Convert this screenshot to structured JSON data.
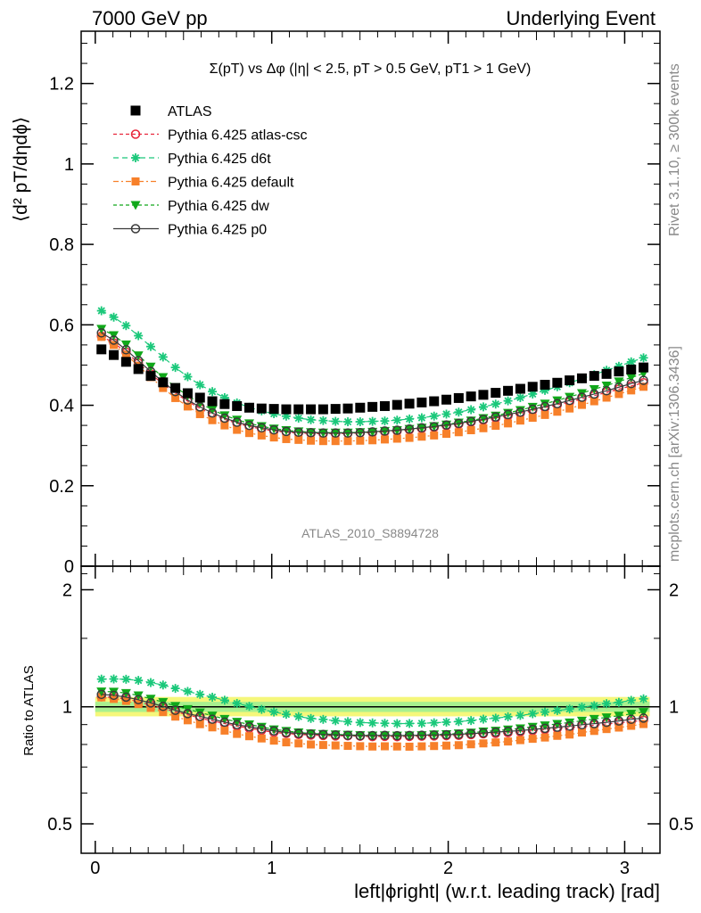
{
  "header": {
    "left": "7000 GeV pp",
    "right": "Underlying Event"
  },
  "side_labels": {
    "rivet": "Rivet 3.1.10, ≥ 300k events",
    "mcplots": "mcplots.cern.ch [arXiv:1306.3436]"
  },
  "chart_data": {
    "type": "scatter",
    "title": "Σ(pT) vs Δφ (|η| < 2.5, pT > 0.5 GeV, pT1 > 1 GeV)",
    "analysis_label": "ATLAS_2010_S8894728",
    "xlabel": "left|ϕright| (w.r.t. leading track) [rad]",
    "ylabel": "⟨d² pT/dηdϕ⟩",
    "ratio_ylabel": "Ratio to ATLAS",
    "xlim": [
      -0.08,
      3.2
    ],
    "ylim": [
      0,
      1.33
    ],
    "ratio_ylim": [
      0.42,
      2.3
    ],
    "ratio_scale": "log",
    "x_ticks": [
      "0",
      "1",
      "2",
      "3"
    ],
    "y_ticks": [
      "0",
      "0.2",
      "0.4",
      "0.6",
      "0.8",
      "1",
      "1.2"
    ],
    "ratio_ticks": [
      "0.5",
      "1",
      "2"
    ],
    "legend_placement": "top-left",
    "x": [
      0.0349,
      0.1047,
      0.1745,
      0.2443,
      0.3142,
      0.384,
      0.4538,
      0.5236,
      0.5934,
      0.6632,
      0.733,
      0.8029,
      0.8727,
      0.9425,
      1.0123,
      1.0821,
      1.1519,
      1.2217,
      1.2915,
      1.3614,
      1.4312,
      1.501,
      1.5708,
      1.6406,
      1.7104,
      1.7802,
      1.85,
      1.9199,
      1.9897,
      2.0595,
      2.1293,
      2.1991,
      2.2689,
      2.3387,
      2.4086,
      2.4784,
      2.5482,
      2.618,
      2.6878,
      2.7576,
      2.8274,
      2.8972,
      2.9671,
      3.0369,
      3.1067
    ],
    "series": [
      {
        "name": "ATLAS",
        "style": "square",
        "color": "#000000",
        "values": [
          0.539,
          0.525,
          0.508,
          0.49,
          0.473,
          0.457,
          0.443,
          0.43,
          0.419,
          0.41,
          0.403,
          0.398,
          0.394,
          0.392,
          0.391,
          0.39,
          0.39,
          0.39,
          0.39,
          0.391,
          0.392,
          0.394,
          0.396,
          0.398,
          0.401,
          0.404,
          0.407,
          0.41,
          0.414,
          0.418,
          0.422,
          0.426,
          0.431,
          0.436,
          0.441,
          0.446,
          0.451,
          0.456,
          0.462,
          0.467,
          0.473,
          0.478,
          0.484,
          0.489,
          0.494
        ]
      },
      {
        "name": "Pythia 6.425 atlas-csc",
        "style": "open-circle",
        "color": "#e8263b",
        "values": [
          0.572,
          0.555,
          0.532,
          0.505,
          0.478,
          0.453,
          0.43,
          0.41,
          0.392,
          0.377,
          0.365,
          0.355,
          0.347,
          0.341,
          0.336,
          0.333,
          0.331,
          0.33,
          0.329,
          0.329,
          0.33,
          0.331,
          0.332,
          0.334,
          0.336,
          0.339,
          0.342,
          0.345,
          0.349,
          0.353,
          0.358,
          0.363,
          0.368,
          0.374,
          0.38,
          0.387,
          0.394,
          0.401,
          0.408,
          0.416,
          0.424,
          0.432,
          0.44,
          0.448,
          0.456
        ]
      },
      {
        "name": "Pythia 6.425 d6t",
        "style": "star",
        "color": "#1ac87a",
        "values": [
          0.635,
          0.619,
          0.598,
          0.573,
          0.546,
          0.52,
          0.494,
          0.471,
          0.451,
          0.434,
          0.419,
          0.406,
          0.395,
          0.386,
          0.379,
          0.373,
          0.368,
          0.364,
          0.362,
          0.36,
          0.359,
          0.359,
          0.36,
          0.361,
          0.363,
          0.366,
          0.369,
          0.373,
          0.378,
          0.383,
          0.389,
          0.396,
          0.403,
          0.411,
          0.419,
          0.428,
          0.437,
          0.446,
          0.456,
          0.466,
          0.476,
          0.487,
          0.497,
          0.508,
          0.518
        ]
      },
      {
        "name": "Pythia 6.425 default",
        "style": "filled-square",
        "color": "#f7802a",
        "values": [
          0.57,
          0.55,
          0.526,
          0.498,
          0.47,
          0.443,
          0.418,
          0.397,
          0.378,
          0.363,
          0.35,
          0.339,
          0.331,
          0.325,
          0.32,
          0.316,
          0.314,
          0.312,
          0.311,
          0.311,
          0.311,
          0.312,
          0.313,
          0.315,
          0.317,
          0.319,
          0.322,
          0.325,
          0.329,
          0.333,
          0.338,
          0.343,
          0.349,
          0.355,
          0.362,
          0.369,
          0.376,
          0.384,
          0.392,
          0.401,
          0.41,
          0.419,
          0.428,
          0.437,
          0.446
        ]
      },
      {
        "name": "Pythia 6.425 dw",
        "style": "triangle-down",
        "color": "#10a81a",
        "values": [
          0.59,
          0.574,
          0.551,
          0.524,
          0.496,
          0.47,
          0.445,
          0.424,
          0.405,
          0.389,
          0.375,
          0.364,
          0.355,
          0.348,
          0.342,
          0.338,
          0.335,
          0.333,
          0.332,
          0.332,
          0.332,
          0.333,
          0.334,
          0.336,
          0.338,
          0.341,
          0.344,
          0.348,
          0.352,
          0.357,
          0.362,
          0.368,
          0.374,
          0.381,
          0.388,
          0.396,
          0.404,
          0.412,
          0.421,
          0.43,
          0.44,
          0.449,
          0.459,
          0.469,
          0.479
        ]
      },
      {
        "name": "Pythia 6.425 p0",
        "style": "open-circle",
        "color": "#3a3a3a",
        "values": [
          0.58,
          0.562,
          0.538,
          0.511,
          0.484,
          0.458,
          0.434,
          0.413,
          0.396,
          0.381,
          0.368,
          0.358,
          0.35,
          0.344,
          0.339,
          0.335,
          0.333,
          0.332,
          0.331,
          0.331,
          0.331,
          0.332,
          0.334,
          0.336,
          0.338,
          0.341,
          0.344,
          0.347,
          0.351,
          0.355,
          0.36,
          0.365,
          0.371,
          0.377,
          0.383,
          0.39,
          0.397,
          0.404,
          0.412,
          0.42,
          0.428,
          0.436,
          0.445,
          0.454,
          0.462
        ]
      }
    ]
  }
}
